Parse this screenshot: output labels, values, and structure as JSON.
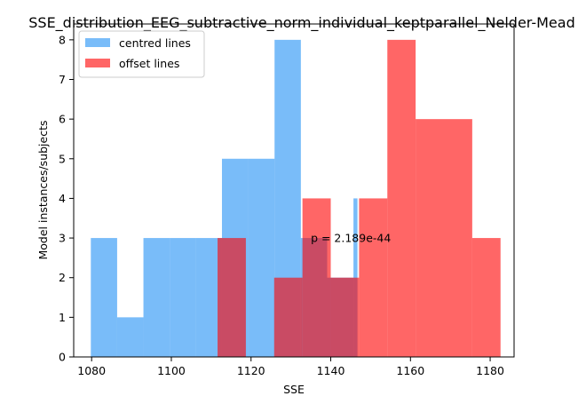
{
  "chart_data": {
    "type": "histogram",
    "title": "SSE_distribution_EEG_subtractive_norm_individual_keptparallel_Nelder-Mead",
    "xlabel": "SSE",
    "ylabel": "Model instances/subjects",
    "xlim": [
      1075.5,
      1186
    ],
    "ylim": [
      0,
      8.4
    ],
    "xticks": [
      1080,
      1100,
      1120,
      1140,
      1160,
      1180
    ],
    "yticks": [
      0,
      1,
      2,
      3,
      4,
      5,
      6,
      7,
      8
    ],
    "grid": false,
    "legend_position": "top-left",
    "annotation": {
      "text": "p = 2.189e-44",
      "x": 1135,
      "y": 3
    },
    "series": [
      {
        "name": "centred lines",
        "color": "#1f8ff5",
        "alpha": 0.6,
        "bin_edges": [
          1079.8,
          1086.4,
          1093.0,
          1099.6,
          1106.1,
          1112.7,
          1119.3,
          1125.9,
          1132.5,
          1139.1,
          1145.7,
          1146.7
        ],
        "counts": [
          3,
          1,
          3,
          3,
          3,
          5,
          5,
          8,
          3,
          2,
          4
        ]
      },
      {
        "name": "offset lines",
        "color": "#ff0000",
        "alpha": 0.6,
        "bin_edges": [
          1111.6,
          1118.7,
          1125.8,
          1132.9,
          1140.0,
          1147.1,
          1154.2,
          1161.3,
          1168.4,
          1175.5,
          1182.6
        ],
        "counts": [
          3,
          0,
          2,
          4,
          2,
          4,
          8,
          6,
          6,
          3
        ]
      }
    ]
  }
}
